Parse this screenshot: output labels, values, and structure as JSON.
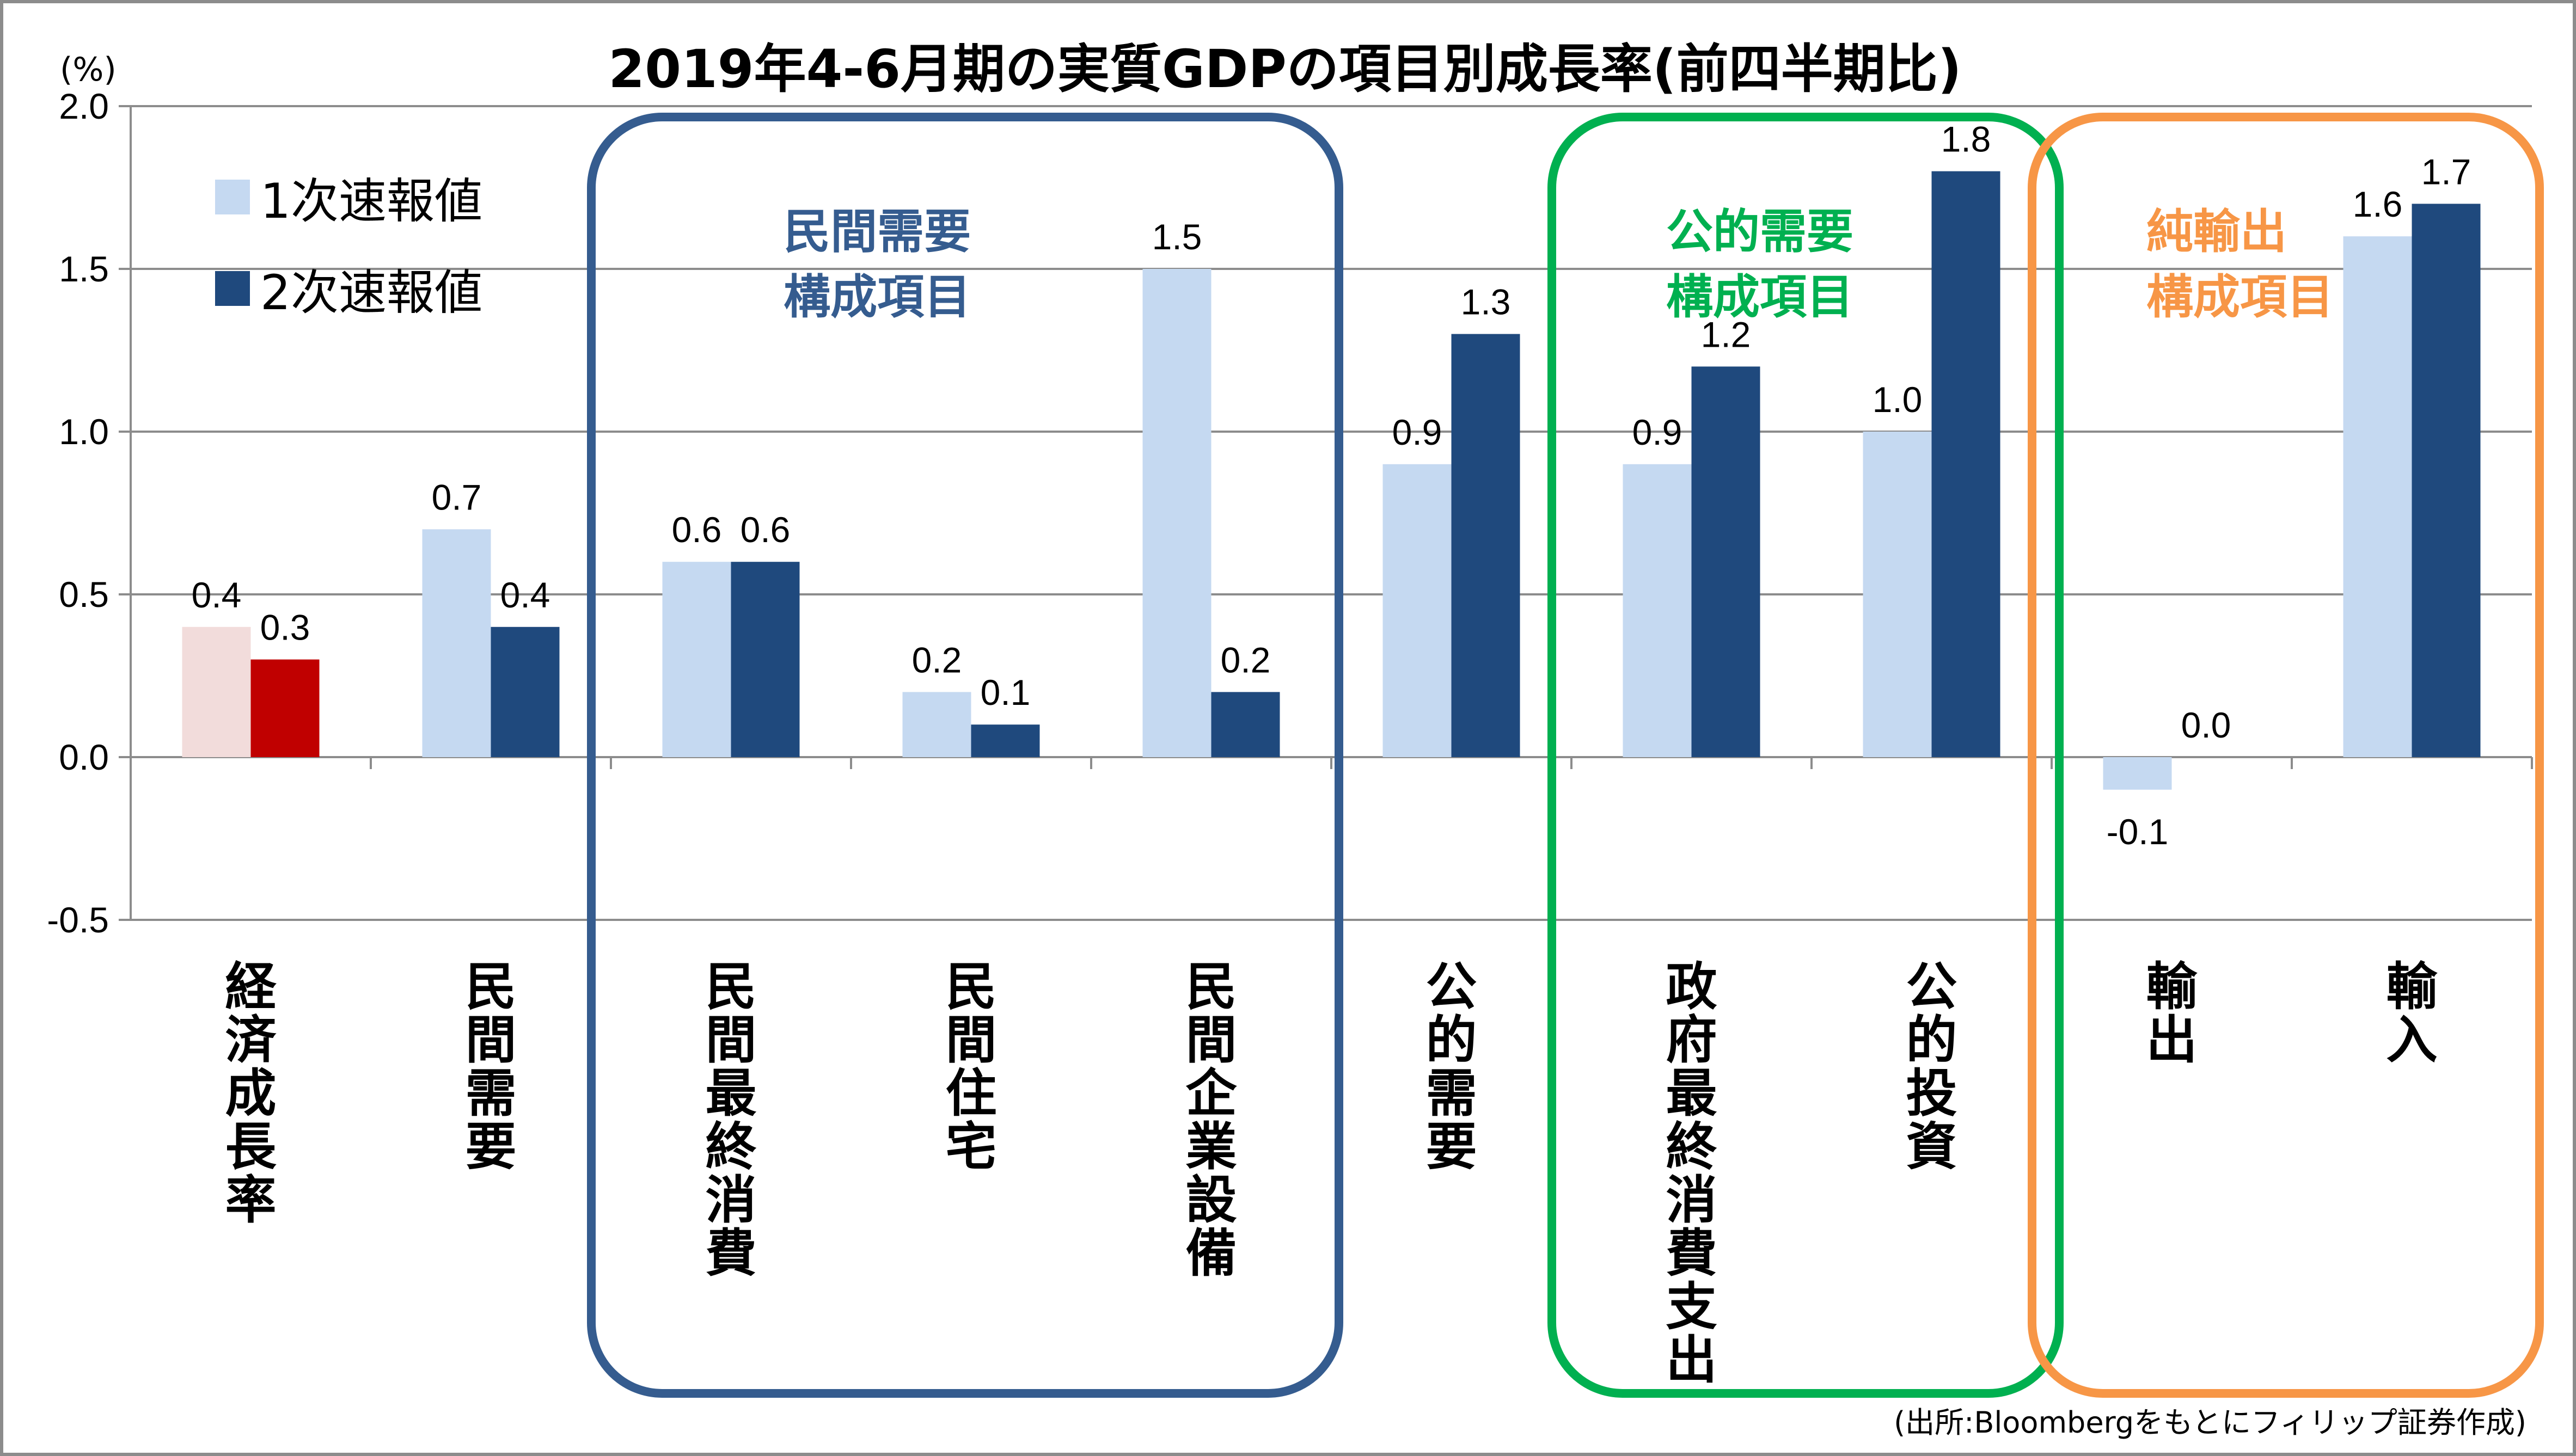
{
  "chart_data": {
    "type": "bar",
    "title": "2019年4-6月期の実質GDPの項目別成長率(前四半期比)",
    "ylabel": "(%)",
    "ylim": [
      -0.5,
      2.0
    ],
    "yticks": [
      "2.0",
      "1.5",
      "1.0",
      "0.5",
      "0.0",
      "-0.5"
    ],
    "categories": [
      "経済成長率",
      "民間需要",
      "民間最終消費",
      "民間住宅",
      "民間企業設備",
      "公的需要",
      "政府最終消費支出",
      "公的投資",
      "輸出",
      "輸入"
    ],
    "series": [
      {
        "name": "1次速報値",
        "color": "#c5d9f1",
        "values": [
          0.4,
          0.7,
          0.6,
          0.2,
          1.5,
          0.9,
          0.9,
          1.0,
          -0.1,
          1.6
        ],
        "labels": [
          "0.4",
          "0.7",
          "0.6",
          "0.2",
          "1.5",
          "0.9",
          "0.9",
          "1.0",
          "-0.1",
          "1.6"
        ]
      },
      {
        "name": "2次速報値",
        "color": "#1f497d",
        "values": [
          0.3,
          0.4,
          0.6,
          0.1,
          0.2,
          1.3,
          1.2,
          1.8,
          0.0,
          1.7
        ],
        "labels": [
          "0.3",
          "0.4",
          "0.6",
          "0.1",
          "0.2",
          "1.3",
          "1.2",
          "1.8",
          "0.0",
          "1.7"
        ]
      }
    ],
    "highlight": {
      "category": "経済成長率",
      "series1_color": "#f2dcdb",
      "series2_color": "#c00000"
    },
    "negative_tick_color": "#ff0000",
    "grid": true,
    "legend_position": "top-left",
    "groups": [
      {
        "label": [
          "民間需要",
          "構成項目"
        ],
        "color": "#355c8f",
        "from": "民間最終消費",
        "to": "民間企業設備"
      },
      {
        "label": [
          "公的需要",
          "構成項目"
        ],
        "color": "#00b050",
        "from": "政府最終消費支出",
        "to": "公的投資"
      },
      {
        "label": [
          "純輸出",
          "構成項目"
        ],
        "color": "#f79646",
        "from": "輸出",
        "to": "輸入"
      }
    ]
  },
  "source": "(出所:Bloombergをもとにフィリップ証券作成)"
}
